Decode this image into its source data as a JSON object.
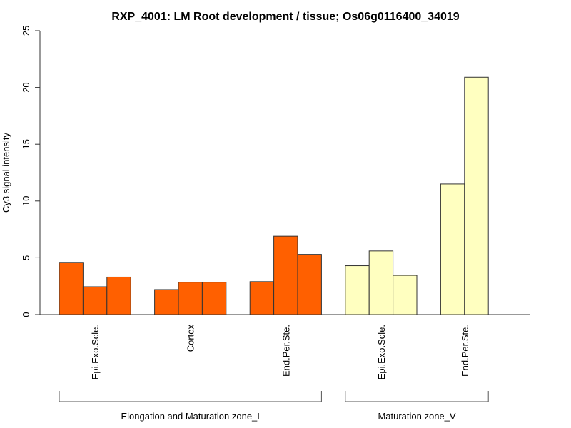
{
  "chart_data": {
    "type": "bar",
    "title": "RXP_4001: LM Root development / tissue; Os06g0116400_34019",
    "xlabel": "",
    "ylabel": "Cy3 signal intensity",
    "ylim": [
      0,
      25
    ],
    "yticks": [
      0,
      5,
      10,
      15,
      20,
      25
    ],
    "grid": false,
    "legend": "none",
    "groups": [
      {
        "name": "Elongation and Maturation zone_I",
        "color": "#FF6000",
        "categories": [
          {
            "label": "Epi.Exo.Scle.",
            "values": [
              4.6,
              2.45,
              3.3
            ]
          },
          {
            "label": "Cortex",
            "values": [
              2.2,
              2.85,
              2.85
            ]
          },
          {
            "label": "End.Per.Ste.",
            "values": [
              2.9,
              6.9,
              5.3
            ]
          }
        ]
      },
      {
        "name": "Maturation zone_V",
        "color": "#FFFFC0",
        "categories": [
          {
            "label": "Epi.Exo.Scle.",
            "values": [
              4.3,
              5.6,
              3.45
            ]
          },
          {
            "label": "End.Per.Ste.",
            "values": [
              11.5,
              20.9
            ]
          }
        ]
      }
    ]
  }
}
